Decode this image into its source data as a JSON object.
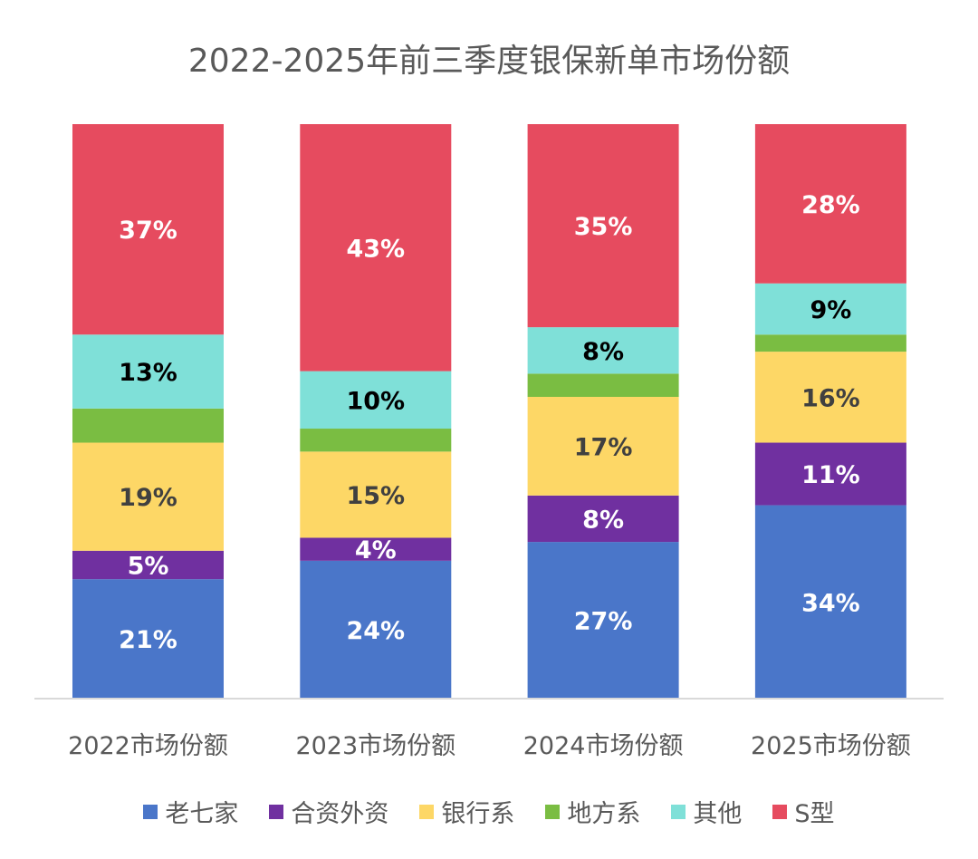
{
  "chart_data": {
    "type": "bar",
    "stacked": "percent",
    "title": "2022-2025年前三季度银保新单市场份额",
    "categories": [
      "2022市场份额",
      "2023市场份额",
      "2024市场份额",
      "2025市场份额"
    ],
    "ylim": [
      0,
      100
    ],
    "grid": false,
    "legend": "bottom",
    "series": [
      {
        "name": "老七家",
        "color": "#4A76C9",
        "label_color": "#FFFFFF",
        "values": [
          21,
          24,
          27,
          34
        ],
        "labels": [
          "21%",
          "24%",
          "27%",
          "34%"
        ]
      },
      {
        "name": "合资外资",
        "color": "#7030A0",
        "label_color": "#FFFFFF",
        "values": [
          5,
          4,
          8,
          11
        ],
        "labels": [
          "5%",
          "4%",
          "8%",
          "11%"
        ]
      },
      {
        "name": "银行系",
        "color": "#FDD766",
        "label_color": "#404040",
        "values": [
          19,
          15,
          17,
          16
        ],
        "labels": [
          "19%",
          "15%",
          "17%",
          "16%"
        ]
      },
      {
        "name": "地方系",
        "color": "#7ABD42",
        "label_color": "#404040",
        "values": [
          6,
          4,
          4,
          3
        ],
        "labels": [
          "",
          "",
          "",
          ""
        ]
      },
      {
        "name": "其他",
        "color": "#7FE0D8",
        "label_color": "#000000",
        "values": [
          13,
          10,
          8,
          9
        ],
        "labels": [
          "13%",
          "10%",
          "8%",
          "9%"
        ]
      },
      {
        "name": "S型",
        "color": "#E64B5F",
        "label_color": "#FFFFFF",
        "values": [
          37,
          43,
          35,
          28
        ],
        "labels": [
          "37%",
          "43%",
          "35%",
          "28%"
        ]
      }
    ]
  }
}
